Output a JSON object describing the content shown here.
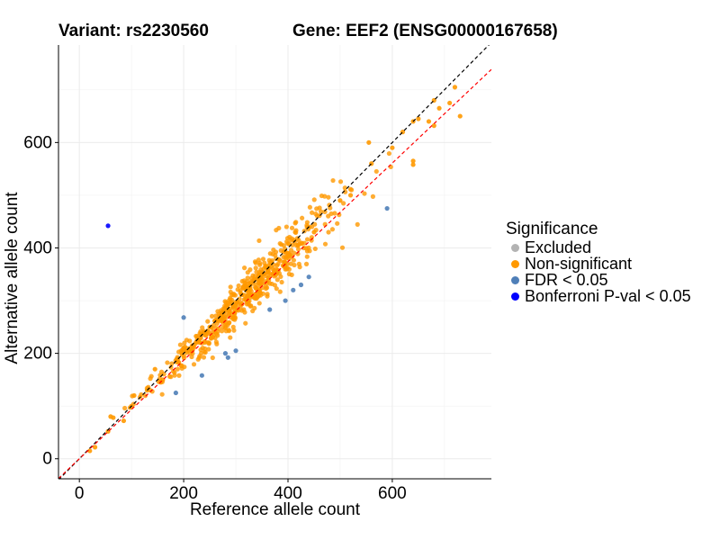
{
  "header": {
    "variant_title": "Variant: rs2230560",
    "gene_title": "Gene: EEF2 (ENSG00000167658)"
  },
  "legend": {
    "title": "Significance",
    "items": [
      {
        "label": "Excluded",
        "color": "#b3b3b3"
      },
      {
        "label": "Non-significant",
        "color": "#ff9900"
      },
      {
        "label": "FDR < 0.05",
        "color": "#4f7fb8"
      },
      {
        "label": "Bonferroni P-val < 0.05",
        "color": "#0000ff"
      }
    ]
  },
  "chart_data": {
    "type": "scatter",
    "title": "Variant: rs2230560    Gene: EEF2 (ENSG00000167658)",
    "xlabel": "Reference allele count",
    "ylabel": "Alternative allele count",
    "xlim": [
      -40,
      790
    ],
    "ylim": [
      -38,
      785
    ],
    "xticks": [
      0,
      200,
      400,
      600
    ],
    "yticks": [
      0,
      200,
      400,
      600
    ],
    "grid": true,
    "legend_position": "right",
    "reference_lines": [
      {
        "name": "identity",
        "slope": 1.0,
        "intercept": 0,
        "color": "#000000",
        "style": "dashed"
      },
      {
        "name": "fit",
        "slope": 0.935,
        "intercept": 0,
        "color": "#ff0000",
        "style": "dashed"
      }
    ],
    "non_significant_generated": {
      "count": 560,
      "x_range": [
        15,
        700
      ],
      "ratio_mean": 0.97,
      "ratio_sd": 0.06
    },
    "series": [
      {
        "name": "Non-significant",
        "color": "#ff9900",
        "points": [
          [
            20,
            15
          ],
          [
            30,
            22
          ],
          [
            55,
            52
          ],
          [
            60,
            80
          ],
          [
            65,
            78
          ],
          [
            85,
            72
          ],
          [
            100,
            100
          ],
          [
            105,
            120
          ],
          [
            130,
            130
          ],
          [
            145,
            170
          ],
          [
            160,
            150
          ],
          [
            200,
            210
          ],
          [
            250,
            250
          ],
          [
            300,
            290
          ],
          [
            350,
            340
          ],
          [
            400,
            390
          ],
          [
            450,
            430
          ],
          [
            500,
            490
          ],
          [
            520,
            500
          ],
          [
            560,
            560
          ],
          [
            555,
            600
          ],
          [
            600,
            590
          ],
          [
            620,
            620
          ],
          [
            640,
            565
          ],
          [
            640,
            558
          ],
          [
            640,
            640
          ],
          [
            650,
            645
          ],
          [
            680,
            680
          ],
          [
            690,
            665
          ],
          [
            670,
            640
          ],
          [
            680,
            632
          ],
          [
            720,
            705
          ],
          [
            730,
            650
          ],
          [
            710,
            675
          ]
        ]
      },
      {
        "name": "FDR < 0.05",
        "color": "#4f7fb8",
        "points": [
          [
            200,
            268
          ],
          [
            185,
            125
          ],
          [
            235,
            158
          ],
          [
            280,
            200
          ],
          [
            300,
            205
          ],
          [
            285,
            192
          ],
          [
            365,
            283
          ],
          [
            395,
            300
          ],
          [
            410,
            320
          ],
          [
            425,
            330
          ],
          [
            440,
            345
          ],
          [
            590,
            475
          ]
        ]
      },
      {
        "name": "Bonferroni P-val < 0.05",
        "color": "#0000ff",
        "points": [
          [
            55,
            442
          ]
        ]
      }
    ]
  }
}
